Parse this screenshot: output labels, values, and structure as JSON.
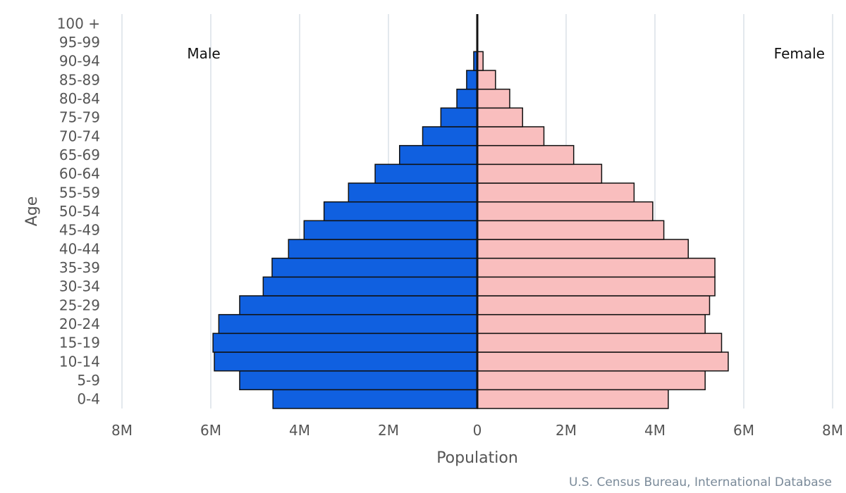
{
  "chart_data": {
    "type": "bar",
    "orientation": "horizontal",
    "subtype": "population-pyramid",
    "categories": [
      "0-4",
      "5-9",
      "10-14",
      "15-19",
      "20-24",
      "25-29",
      "30-34",
      "35-39",
      "40-44",
      "45-49",
      "50-54",
      "55-59",
      "60-64",
      "65-69",
      "70-74",
      "75-79",
      "80-84",
      "85-89",
      "90-94",
      "95-99",
      "100 +"
    ],
    "series": [
      {
        "name": "Male",
        "color": "#1060e0",
        "values": [
          4.6,
          5.35,
          5.92,
          5.95,
          5.82,
          5.35,
          4.82,
          4.62,
          4.25,
          3.9,
          3.45,
          2.9,
          2.3,
          1.75,
          1.23,
          0.82,
          0.46,
          0.24,
          0.08,
          0.02,
          0.01
        ]
      },
      {
        "name": "Female",
        "color": "#f9bebe",
        "values": [
          4.3,
          5.13,
          5.65,
          5.5,
          5.13,
          5.23,
          5.35,
          5.35,
          4.75,
          4.2,
          3.95,
          3.53,
          2.8,
          2.17,
          1.5,
          1.02,
          0.73,
          0.41,
          0.13,
          0.03,
          0.01
        ]
      }
    ],
    "units": "millions",
    "xlabel": "Population",
    "ylabel": "Age",
    "xlim": [
      -8,
      8
    ],
    "xticks": [
      -8,
      -6,
      -4,
      -2,
      0,
      2,
      4,
      6,
      8
    ],
    "xtick_labels": [
      "8M",
      "6M",
      "4M",
      "2M",
      "0",
      "2M",
      "4M",
      "6M",
      "8M"
    ],
    "grid": true,
    "side_labels": {
      "left": "Male",
      "right": "Female"
    },
    "source": "U.S. Census Bureau, International Database"
  }
}
